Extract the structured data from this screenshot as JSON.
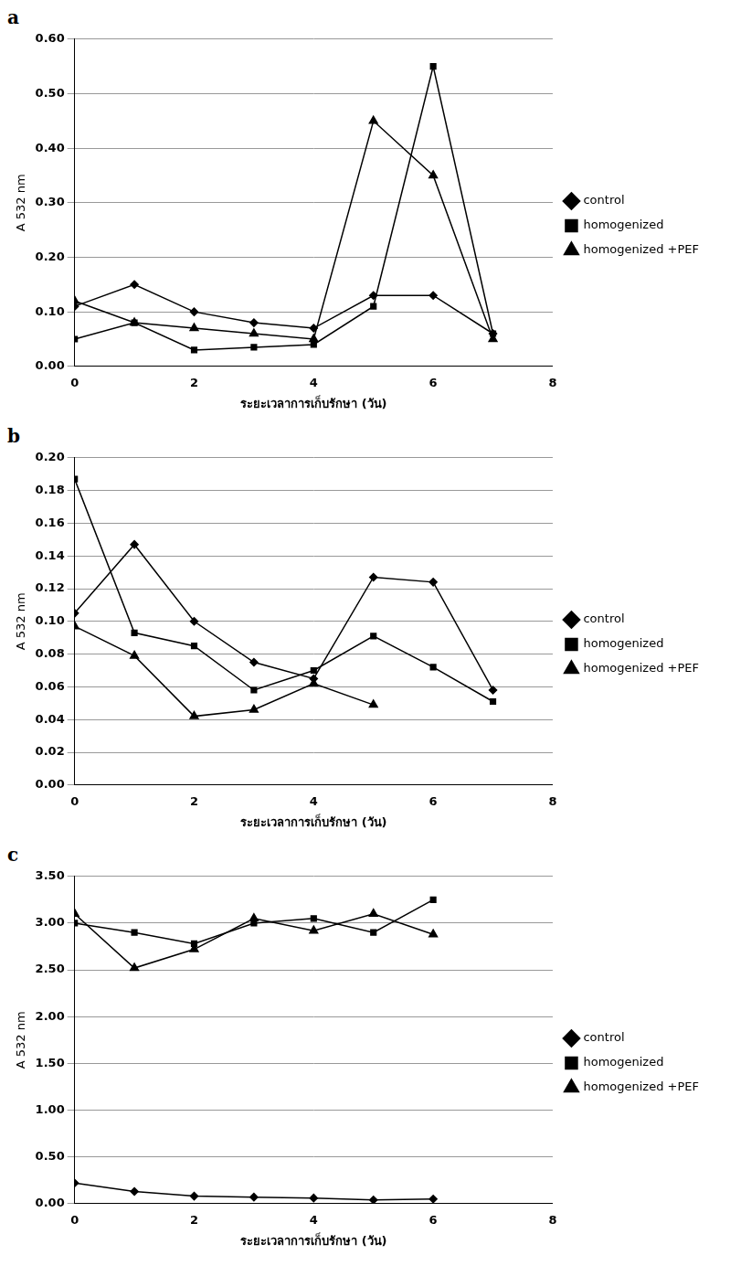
{
  "chart_data": [
    {
      "panel": "a",
      "type": "line",
      "x_label": "ระยะเวลาการเก็บรักษา (วัน)",
      "y_label": "A 532 nm",
      "xlim": [
        0,
        8
      ],
      "xticks": [
        0,
        2,
        4,
        6,
        8
      ],
      "ylim": [
        0,
        0.6
      ],
      "yticks": [
        {
          "value": 0,
          "label": "0.00"
        },
        {
          "value": 0.1,
          "label": "0.10"
        },
        {
          "value": 0.2,
          "label": "0.20"
        },
        {
          "value": 0.3,
          "label": "0.30"
        },
        {
          "value": 0.4,
          "label": "0.40"
        },
        {
          "value": 0.5,
          "label": "0.50"
        },
        {
          "value": 0.6,
          "label": "0.60"
        }
      ],
      "grid": "y",
      "legend": "right",
      "x": [
        0,
        1,
        2,
        3,
        4,
        5,
        6,
        7
      ],
      "series": [
        {
          "name": "control",
          "color": "#000000",
          "marker": "diamond",
          "values": [
            0.11,
            0.15,
            0.1,
            0.08,
            0.07,
            0.13,
            0.13,
            0.06
          ]
        },
        {
          "name": "homogenized",
          "color": "#000000",
          "marker": "square",
          "values": [
            0.05,
            0.08,
            0.03,
            0.035,
            0.04,
            0.11,
            0.55,
            0.06
          ]
        },
        {
          "name": "homogenized +PEF",
          "color": "#000000",
          "marker": "triangle",
          "values": [
            0.12,
            0.08,
            0.07,
            0.06,
            0.05,
            0.45,
            0.35,
            0.05
          ]
        }
      ]
    },
    {
      "panel": "b",
      "type": "line",
      "x_label": "ระยะเวลาการเก็บรักษา (วัน)",
      "y_label": "A 532 nm",
      "xlim": [
        0,
        8
      ],
      "xticks": [
        0,
        2,
        4,
        6,
        8
      ],
      "ylim": [
        0,
        0.2
      ],
      "yticks": [
        {
          "value": 0,
          "label": "0.00"
        },
        {
          "value": 0.02,
          "label": "0.02"
        },
        {
          "value": 0.04,
          "label": "0.04"
        },
        {
          "value": 0.06,
          "label": "0.06"
        },
        {
          "value": 0.08,
          "label": "0.08"
        },
        {
          "value": 0.1,
          "label": "0.10"
        },
        {
          "value": 0.12,
          "label": "0.12"
        },
        {
          "value": 0.14,
          "label": "0.14"
        },
        {
          "value": 0.16,
          "label": "0.16"
        },
        {
          "value": 0.18,
          "label": "0.18"
        },
        {
          "value": 0.2,
          "label": "0.20"
        }
      ],
      "grid": "y",
      "legend": "right",
      "x": [
        0,
        1,
        2,
        3,
        4,
        5,
        6,
        7
      ],
      "series": [
        {
          "name": "control",
          "color": "#000000",
          "marker": "diamond",
          "values": [
            0.105,
            0.147,
            0.1,
            0.075,
            0.065,
            0.127,
            0.124,
            0.058
          ]
        },
        {
          "name": "homogenized",
          "color": "#000000",
          "marker": "square",
          "values": [
            0.187,
            0.093,
            0.085,
            0.058,
            0.07,
            0.091,
            0.072,
            0.051
          ]
        },
        {
          "name": "homogenized +PEF",
          "color": "#000000",
          "marker": "triangle",
          "values": [
            0.097,
            0.079,
            0.042,
            0.046,
            0.062,
            0.049,
            null,
            null
          ]
        }
      ]
    },
    {
      "panel": "c",
      "type": "line",
      "x_label": "ระยะเวลาการเก็บรักษา (วัน)",
      "y_label": "A 532 nm",
      "xlim": [
        0,
        8
      ],
      "xticks": [
        0,
        2,
        4,
        6,
        8
      ],
      "ylim": [
        0,
        3.5
      ],
      "yticks": [
        {
          "value": 0,
          "label": "0.00"
        },
        {
          "value": 0.5,
          "label": "0.50"
        },
        {
          "value": 1,
          "label": "1.00"
        },
        {
          "value": 1.5,
          "label": "1.50"
        },
        {
          "value": 2,
          "label": "2.00"
        },
        {
          "value": 2.5,
          "label": "2.50"
        },
        {
          "value": 3,
          "label": "3.00"
        },
        {
          "value": 3.5,
          "label": "3.50"
        }
      ],
      "grid": "y",
      "legend": "right",
      "x": [
        0,
        1,
        2,
        3,
        4,
        5,
        6
      ],
      "series": [
        {
          "name": "control",
          "color": "#000000",
          "marker": "diamond",
          "values": [
            0.22,
            0.13,
            0.08,
            0.07,
            0.06,
            0.04,
            0.05
          ]
        },
        {
          "name": "homogenized",
          "color": "#000000",
          "marker": "square",
          "values": [
            3.0,
            2.9,
            2.78,
            3.0,
            3.05,
            2.9,
            3.25
          ]
        },
        {
          "name": "homogenized +PEF",
          "color": "#000000",
          "marker": "triangle",
          "values": [
            3.1,
            2.52,
            2.72,
            3.05,
            2.92,
            3.1,
            2.88
          ]
        }
      ]
    }
  ]
}
